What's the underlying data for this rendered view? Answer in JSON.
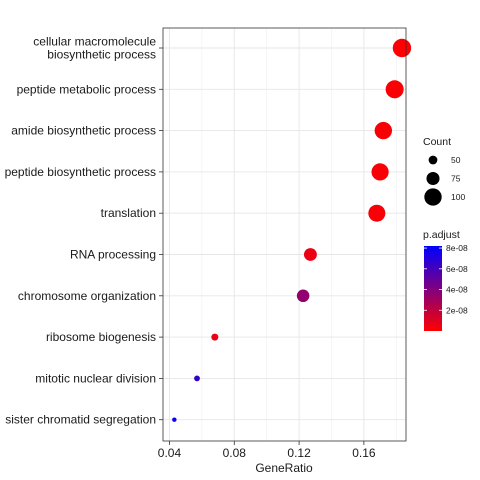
{
  "chart_data": {
    "type": "scatter",
    "title": "",
    "xlabel": "GeneRatio",
    "ylabel": "",
    "xlim": [
      0.036,
      0.186
    ],
    "x_ticks": [
      "0.04",
      "0.08",
      "0.12",
      "0.16"
    ],
    "grid": true,
    "legend_placement": "right",
    "points": [
      {
        "term": "cellular macromolecule\nbiosynthetic process",
        "gene_ratio": 0.1835,
        "count": 106,
        "p_adjust": 1e-09
      },
      {
        "term": "peptide metabolic process",
        "gene_ratio": 0.179,
        "count": 104,
        "p_adjust": 1.5e-09
      },
      {
        "term": "amide biosynthetic process",
        "gene_ratio": 0.172,
        "count": 100,
        "p_adjust": 2e-09
      },
      {
        "term": "peptide biosynthetic process",
        "gene_ratio": 0.17,
        "count": 99,
        "p_adjust": 2e-09
      },
      {
        "term": "translation",
        "gene_ratio": 0.168,
        "count": 98,
        "p_adjust": 2e-09
      },
      {
        "term": "RNA processing",
        "gene_ratio": 0.127,
        "count": 74,
        "p_adjust": 6e-09
      },
      {
        "term": "chromosome organization",
        "gene_ratio": 0.1225,
        "count": 72,
        "p_adjust": 3.5e-08
      },
      {
        "term": "ribosome biogenesis",
        "gene_ratio": 0.068,
        "count": 40,
        "p_adjust": 6e-09
      },
      {
        "term": "mitotic nuclear division",
        "gene_ratio": 0.057,
        "count": 33,
        "p_adjust": 6.6e-08
      },
      {
        "term": "sister chromatid segregation",
        "gene_ratio": 0.043,
        "count": 25,
        "p_adjust": 8e-08
      }
    ],
    "size_legend": {
      "title": "Count",
      "values": [
        50,
        75,
        100
      ]
    },
    "color_legend": {
      "title": "p.adjust",
      "range": [
        0,
        8.2e-08
      ],
      "ticks": [
        {
          "value": 2e-08,
          "label": "2e-08"
        },
        {
          "value": 4e-08,
          "label": "4e-08"
        },
        {
          "value": 6e-08,
          "label": "6e-08"
        },
        {
          "value": 8e-08,
          "label": "8e-08"
        }
      ],
      "low_color": "#ff0000",
      "high_color": "#0000ff"
    }
  }
}
